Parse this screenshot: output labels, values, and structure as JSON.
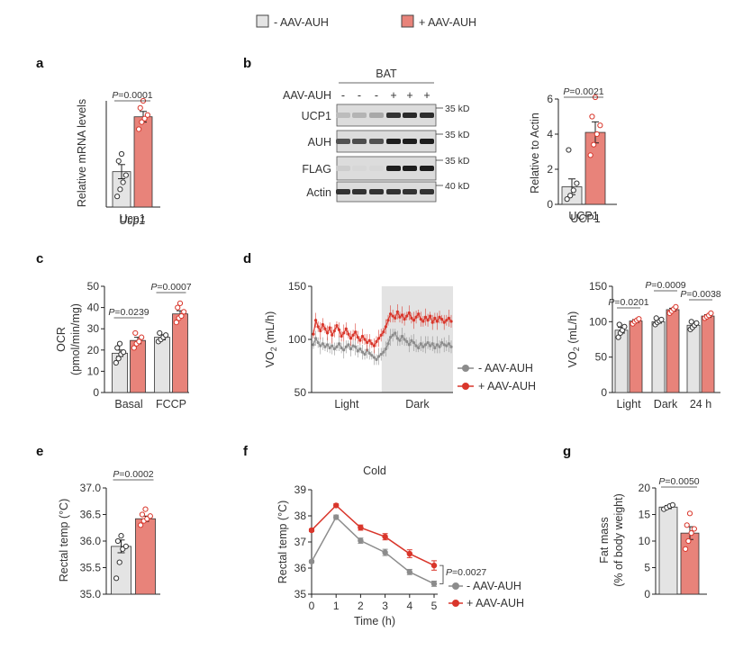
{
  "legend_top": [
    {
      "label": "- AAV-AUH",
      "color": "#e4e4e4"
    },
    {
      "label": "+ AAV-AUH",
      "color": "#e8837a"
    }
  ],
  "colors": {
    "ctrl_bar": "#e4e4e4",
    "auh_bar": "#e8837a",
    "ctrl_line": "#8c8c8c",
    "auh_line": "#d9362b",
    "auh_point": "#d9362b",
    "dark_shade": "#e3e3e3"
  },
  "chart_data": [
    {
      "id": "a",
      "panel_label": "a",
      "type": "bar",
      "ylabel": "Relative mRNA levels",
      "xlabel": "Ucp1",
      "ylim": [
        0,
        3
      ],
      "yticks": [],
      "pvalues": [
        {
          "text": "=0.0001",
          "between": [
            0,
            1
          ]
        }
      ],
      "groups": [
        {
          "name": "Ucp1",
          "series": [
            {
              "mean": 1.0,
              "sem": 0.2,
              "points": [
                0.3,
                0.5,
                0.7,
                0.9,
                1.3,
                1.5
              ]
            },
            {
              "mean": 2.55,
              "sem": 0.15,
              "points": [
                2.2,
                2.4,
                2.5,
                2.6,
                2.8,
                3.0
              ]
            }
          ]
        }
      ]
    },
    {
      "id": "b_blot",
      "panel_label": "b",
      "type": "table",
      "title": "BAT",
      "row_header": "AAV-AUH",
      "lanes": [
        "-",
        "-",
        "-",
        "+",
        "+",
        "+"
      ],
      "rows": [
        {
          "name": "UCP1",
          "kd": "35 kD",
          "intensity": [
            0.18,
            0.22,
            0.28,
            0.85,
            0.9,
            0.88
          ]
        },
        {
          "name": "AUH",
          "kd": "35 kD",
          "intensity": [
            0.7,
            0.72,
            0.7,
            0.95,
            0.95,
            0.95
          ]
        },
        {
          "name": "FLAG",
          "kd": "35 kD",
          "intensity": [
            0.1,
            0.05,
            0.05,
            0.95,
            0.95,
            0.95
          ]
        },
        {
          "name": "Actin",
          "kd": "40 kD",
          "intensity": [
            0.85,
            0.85,
            0.85,
            0.85,
            0.85,
            0.85
          ]
        }
      ]
    },
    {
      "id": "b_quant",
      "type": "bar",
      "ylabel": "Relative to Actin",
      "xlabel": "UCP1",
      "ylim": [
        0,
        6
      ],
      "yticks": [
        "0",
        "2",
        "4",
        "6"
      ],
      "pvalues": [
        {
          "text": "=0.0021",
          "between": [
            0,
            1
          ]
        }
      ],
      "groups": [
        {
          "name": "UCP1",
          "series": [
            {
              "mean": 1.0,
              "sem": 0.45,
              "points": [
                0.3,
                0.5,
                0.8,
                1.2,
                3.1
              ]
            },
            {
              "mean": 4.1,
              "sem": 0.6,
              "points": [
                2.8,
                3.4,
                4.0,
                4.5,
                5.0,
                6.1
              ]
            }
          ]
        }
      ]
    },
    {
      "id": "c",
      "panel_label": "c",
      "type": "bar",
      "ylabel": "OCR",
      "ylabel2": "(pmol/min/mg)",
      "ylim": [
        0,
        50
      ],
      "yticks": [
        "0",
        "10",
        "20",
        "30",
        "40",
        "50"
      ],
      "pvalues": [
        {
          "text": "=0.0239",
          "between": [
            0,
            1
          ]
        },
        {
          "text": "=0.0007",
          "between": [
            2,
            3
          ]
        }
      ],
      "groups": [
        {
          "name": "Basal",
          "series": [
            {
              "mean": 18.5,
              "sem": 1.5,
              "points": [
                14,
                16,
                18,
                19,
                21,
                23
              ]
            },
            {
              "mean": 24.5,
              "sem": 1.5,
              "points": [
                21,
                23,
                24,
                26,
                28
              ]
            }
          ]
        },
        {
          "name": "FCCP",
          "series": [
            {
              "mean": 26,
              "sem": 1.2,
              "points": [
                24,
                25,
                26,
                27,
                28
              ]
            },
            {
              "mean": 37,
              "sem": 1.5,
              "points": [
                33,
                35,
                36,
                38,
                40,
                42
              ]
            }
          ]
        }
      ]
    },
    {
      "id": "d_line",
      "panel_label": "d",
      "type": "line",
      "ylabel": "VO2 (mL/h)",
      "ylim": [
        50,
        150
      ],
      "yticks": [
        "50",
        "100",
        "150"
      ],
      "xcategories": [
        "Light",
        "Dark"
      ],
      "legend": [
        "- AAV-AUH",
        "+ AAV-AUH"
      ],
      "series": [
        {
          "name": "- AAV-AUH",
          "values": [
            95,
            101,
            97,
            94,
            96,
            93,
            95,
            92,
            94,
            91,
            93,
            96,
            92,
            90,
            93,
            95,
            91,
            94,
            93,
            89,
            91,
            88,
            86,
            90,
            87,
            85,
            83,
            81,
            84,
            86,
            88,
            91,
            96,
            102,
            104,
            106,
            101,
            99,
            103,
            100,
            98,
            95,
            99,
            97,
            94,
            92,
            96,
            93,
            95,
            97,
            94,
            96,
            92,
            95,
            93,
            97,
            95,
            94,
            96,
            93
          ]
        },
        {
          "name": "+ AAV-AUH",
          "values": [
            105,
            118,
            112,
            108,
            114,
            110,
            106,
            111,
            104,
            108,
            113,
            109,
            103,
            106,
            110,
            105,
            101,
            104,
            107,
            102,
            99,
            103,
            100,
            97,
            99,
            96,
            94,
            98,
            101,
            104,
            107,
            112,
            118,
            124,
            122,
            120,
            126,
            121,
            123,
            119,
            122,
            125,
            120,
            118,
            121,
            124,
            119,
            117,
            121,
            118,
            122,
            116,
            120,
            117,
            121,
            119,
            116,
            118,
            120,
            117
          ]
        }
      ],
      "dark_start_index": 30
    },
    {
      "id": "d_bar",
      "type": "bar",
      "ylabel": "VO2 (mL/h)",
      "ylim": [
        0,
        150
      ],
      "yticks": [
        "0",
        "50",
        "100",
        "150"
      ],
      "pvalues": [
        {
          "text": "=0.0201",
          "between": [
            0,
            1
          ]
        },
        {
          "text": "=0.0009",
          "between": [
            2,
            3
          ]
        },
        {
          "text": "=0.0038",
          "between": [
            4,
            5
          ]
        }
      ],
      "groups": [
        {
          "name": "Light",
          "series": [
            {
              "mean": 88,
              "sem": 4,
              "points": [
                78,
                84,
                88,
                93,
                96
              ]
            },
            {
              "mean": 101,
              "sem": 2,
              "points": [
                97,
                100,
                102,
                104
              ]
            }
          ]
        },
        {
          "name": "Dark",
          "series": [
            {
              "mean": 100,
              "sem": 2,
              "points": [
                96,
                99,
                101,
                103,
                105
              ]
            },
            {
              "mean": 117,
              "sem": 2,
              "points": [
                112,
                115,
                118,
                121
              ]
            }
          ]
        },
        {
          "name": "24 h",
          "series": [
            {
              "mean": 95,
              "sem": 2,
              "points": [
                89,
                92,
                95,
                98,
                100
              ]
            },
            {
              "mean": 108,
              "sem": 2,
              "points": [
                105,
                107,
                109,
                112
              ]
            }
          ]
        }
      ]
    },
    {
      "id": "e",
      "panel_label": "e",
      "type": "bar",
      "ylabel": "Rectal temp (°C)",
      "ylim": [
        35,
        37
      ],
      "yticks": [
        "35.0",
        "35.5",
        "36.0",
        "36.5",
        "37.0"
      ],
      "pvalues": [
        {
          "text": "=0.0002",
          "between": [
            0,
            1
          ]
        }
      ],
      "groups": [
        {
          "name": "",
          "series": [
            {
              "mean": 35.9,
              "sem": 0.12,
              "points": [
                35.3,
                35.6,
                35.85,
                35.9,
                36.0,
                36.1
              ]
            },
            {
              "mean": 36.42,
              "sem": 0.05,
              "points": [
                36.3,
                36.38,
                36.42,
                36.47,
                36.5,
                36.6
              ]
            }
          ]
        }
      ]
    },
    {
      "id": "f",
      "panel_label": "f",
      "type": "line",
      "title": "Cold",
      "xlabel": "Time (h)",
      "ylabel": "Rectal temp (°C)",
      "ylim": [
        35,
        39
      ],
      "yticks": [
        "35",
        "36",
        "37",
        "38",
        "39"
      ],
      "x": [
        0,
        1,
        2,
        3,
        4,
        5
      ],
      "xticks": [
        "0",
        "1",
        "2",
        "3",
        "4",
        "5"
      ],
      "pvalue": {
        "text": "=0.0027"
      },
      "legend": [
        "- AAV-AUH",
        "+ AAV-AUH"
      ],
      "series": [
        {
          "name": "- AAV-AUH",
          "values": [
            36.25,
            37.95,
            37.05,
            36.6,
            35.85,
            35.4
          ],
          "sem": [
            0.05,
            0.08,
            0.1,
            0.12,
            0.1,
            0.1
          ]
        },
        {
          "name": "+ AAV-AUH",
          "values": [
            37.45,
            38.4,
            37.55,
            37.2,
            36.55,
            36.1
          ],
          "sem": [
            0.05,
            0.06,
            0.1,
            0.12,
            0.15,
            0.18
          ]
        }
      ]
    },
    {
      "id": "g",
      "panel_label": "g",
      "type": "bar",
      "ylabel": "Fat mass",
      "ylabel2": "(% of body weight)",
      "ylim": [
        0,
        20
      ],
      "yticks": [
        "0",
        "5",
        "10",
        "15",
        "20"
      ],
      "pvalues": [
        {
          "text": "=0.0050",
          "between": [
            0,
            1
          ]
        }
      ],
      "groups": [
        {
          "name": "",
          "series": [
            {
              "mean": 16.4,
              "sem": 0.3,
              "points": [
                16.0,
                16.3,
                16.6,
                16.8
              ]
            },
            {
              "mean": 11.5,
              "sem": 1.2,
              "points": [
                8.5,
                10.0,
                11.5,
                12.3,
                13.0,
                15.2
              ]
            }
          ]
        }
      ]
    }
  ]
}
